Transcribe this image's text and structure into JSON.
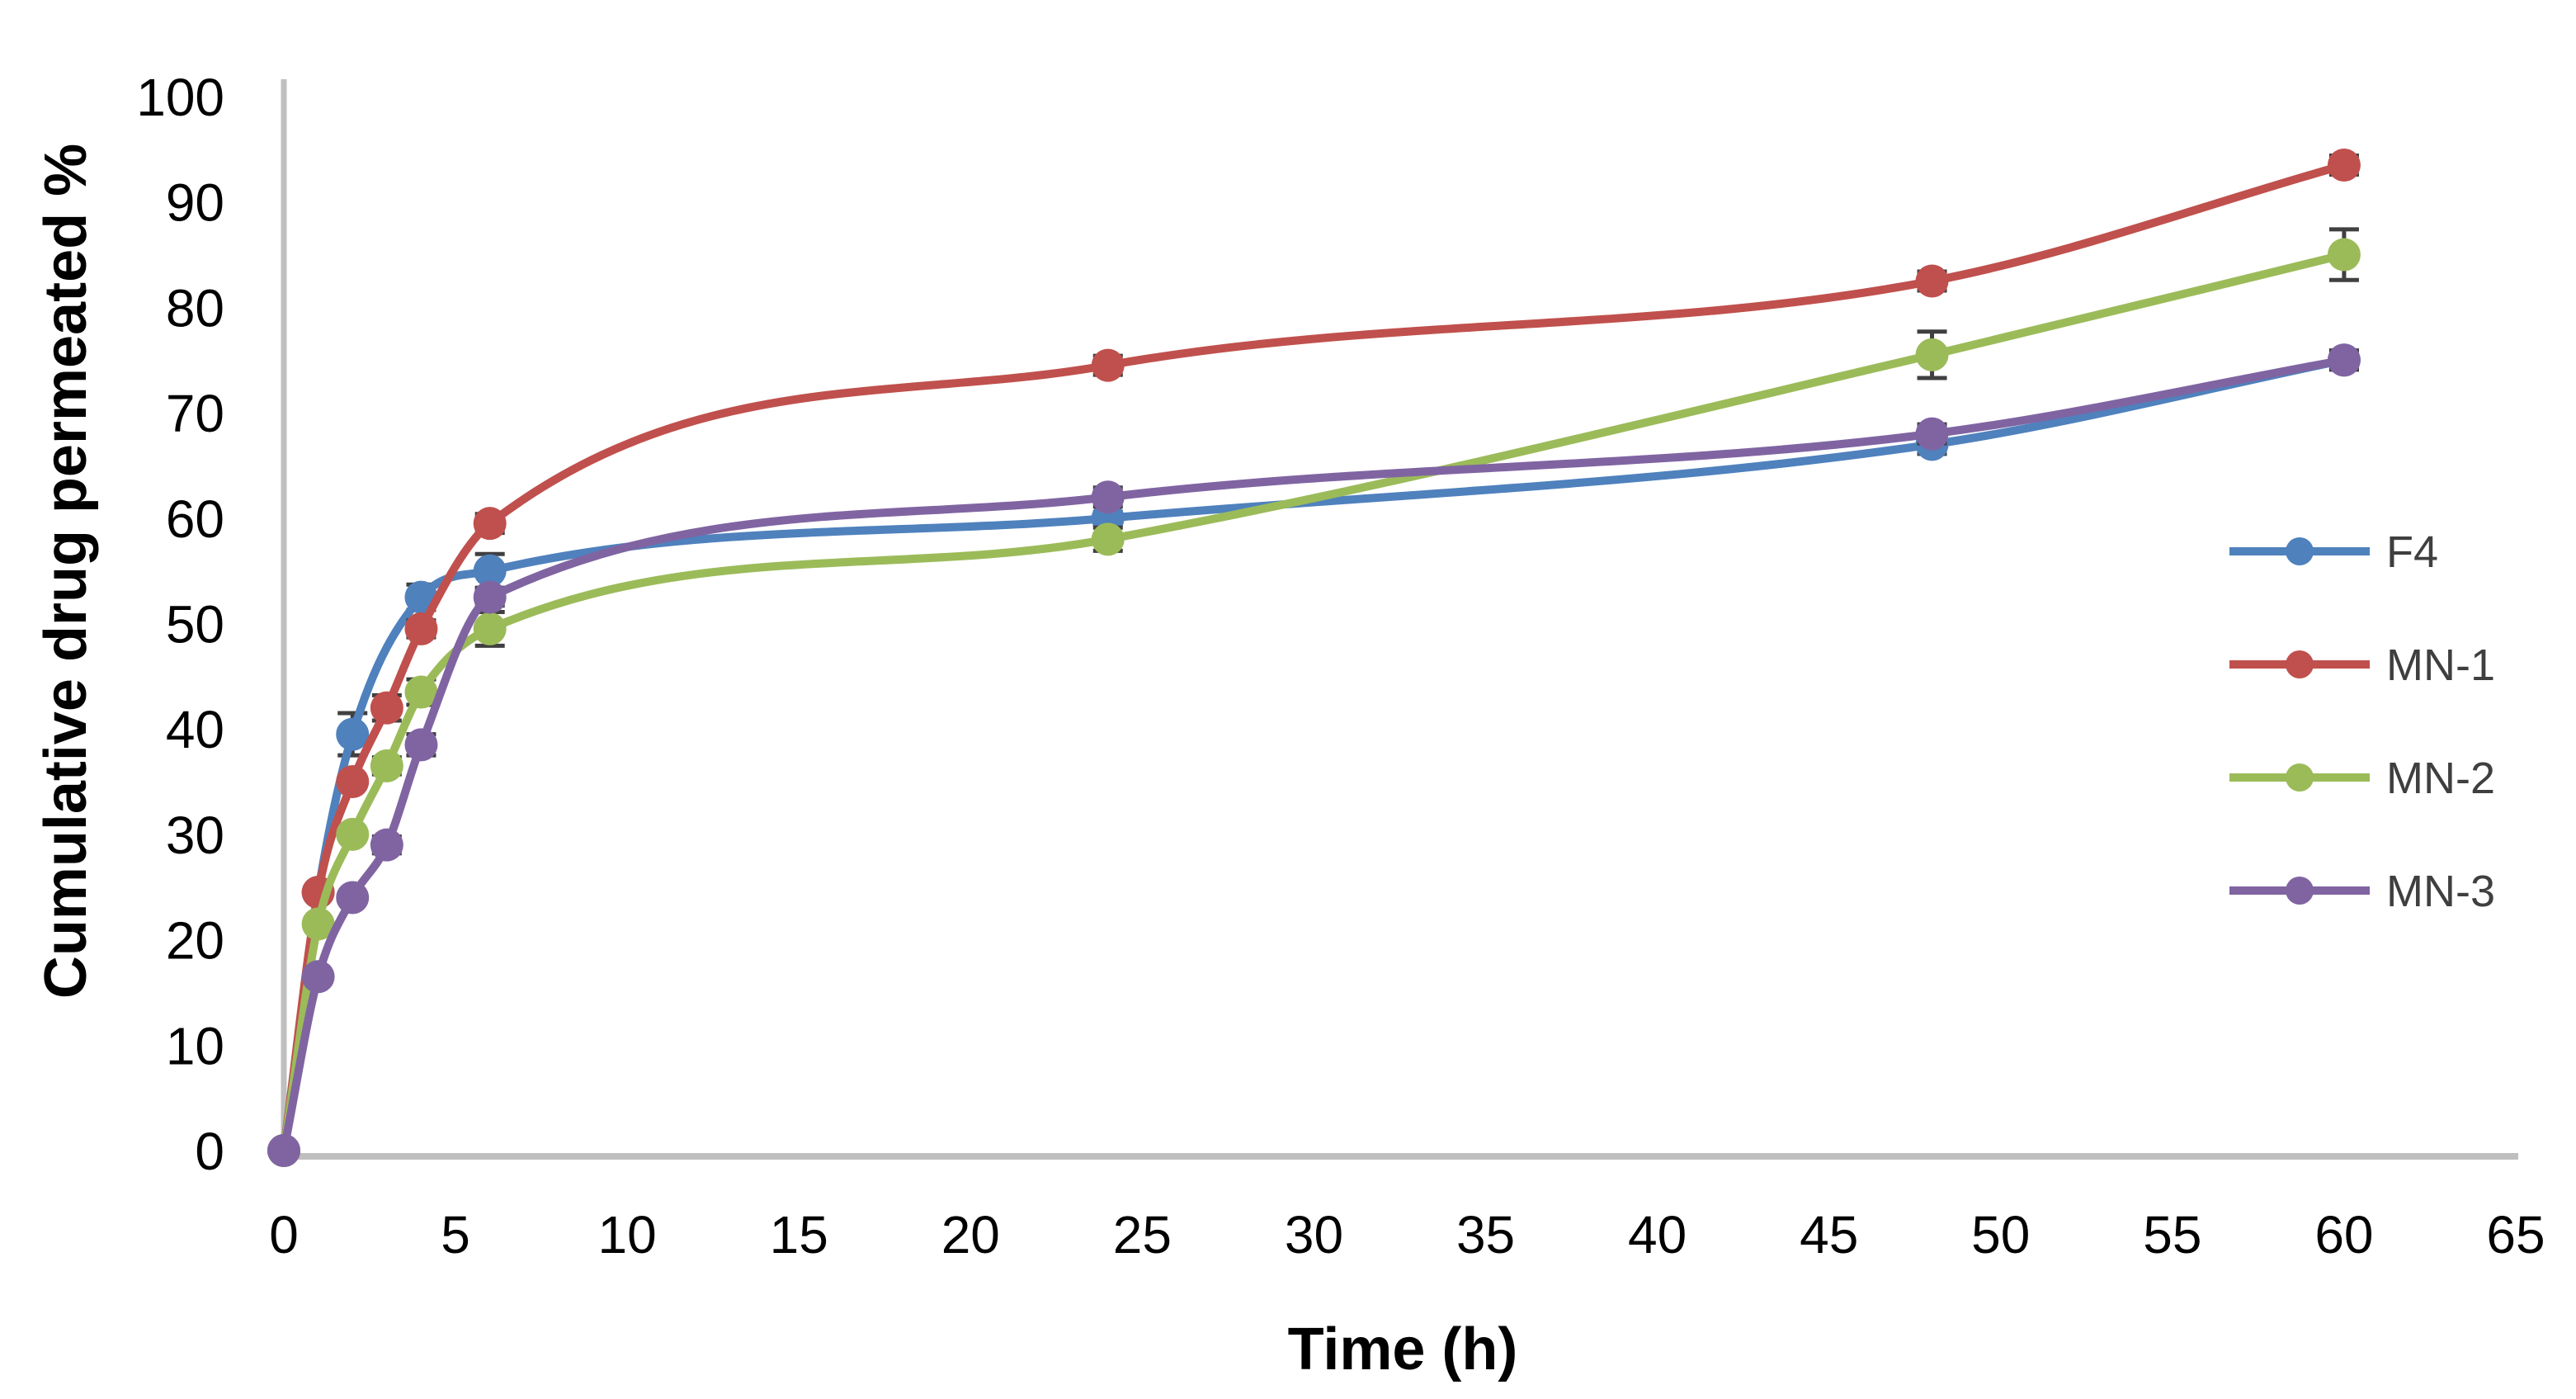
{
  "chart_data": {
    "type": "line",
    "title": "",
    "xlabel": "Time (h)",
    "ylabel": "Cumulative drug permeated %",
    "xlim": [
      0,
      65
    ],
    "ylim": [
      0,
      100
    ],
    "x_ticks": [
      0,
      5,
      10,
      15,
      20,
      25,
      30,
      35,
      40,
      45,
      50,
      55,
      60,
      65
    ],
    "y_ticks": [
      0,
      10,
      20,
      30,
      40,
      50,
      60,
      70,
      80,
      90,
      100
    ],
    "grid": false,
    "smooth": true,
    "legend_position": "right",
    "marker": "circle",
    "axis_color": "#BFBFBF",
    "tick_color": "#000000",
    "legend_text_color": "#3F3F3F",
    "error_bar_color": "#404040",
    "series": [
      {
        "name": "F4",
        "color": "#4F81BD",
        "x": [
          0,
          1,
          2,
          4,
          6,
          24,
          48,
          60
        ],
        "y": [
          0,
          24.5,
          39.5,
          52.5,
          55,
          60,
          67,
          75
        ],
        "err": [
          0,
          0,
          2,
          1.2,
          1.6,
          0.6,
          0.9,
          0.9
        ]
      },
      {
        "name": "MN-1",
        "color": "#C0504D",
        "x": [
          0,
          1,
          2,
          3,
          4,
          6,
          24,
          48,
          60
        ],
        "y": [
          0,
          24.5,
          35,
          42,
          49.5,
          59.5,
          74.5,
          82.5,
          93.5
        ],
        "err": [
          0,
          0,
          0,
          1.2,
          0.8,
          0.9,
          0.9,
          0.9,
          0.9
        ]
      },
      {
        "name": "MN-2",
        "color": "#9BBB59",
        "x": [
          0,
          1,
          2,
          3,
          4,
          6,
          24,
          48,
          60
        ],
        "y": [
          0,
          21.5,
          30,
          36.5,
          43.5,
          49.5,
          58,
          75.5,
          85
        ],
        "err": [
          0,
          0,
          0,
          0.8,
          1.2,
          1.6,
          1.1,
          2.2,
          2.4
        ]
      },
      {
        "name": "MN-3",
        "color": "#8064A2",
        "x": [
          0,
          1,
          2,
          3,
          4,
          6,
          24,
          48,
          60
        ],
        "y": [
          0,
          16.5,
          24,
          29,
          38.5,
          52.5,
          62,
          68,
          75
        ],
        "err": [
          0,
          0,
          0,
          0.8,
          1,
          0.8,
          0.9,
          0.9,
          0.9
        ]
      }
    ]
  }
}
